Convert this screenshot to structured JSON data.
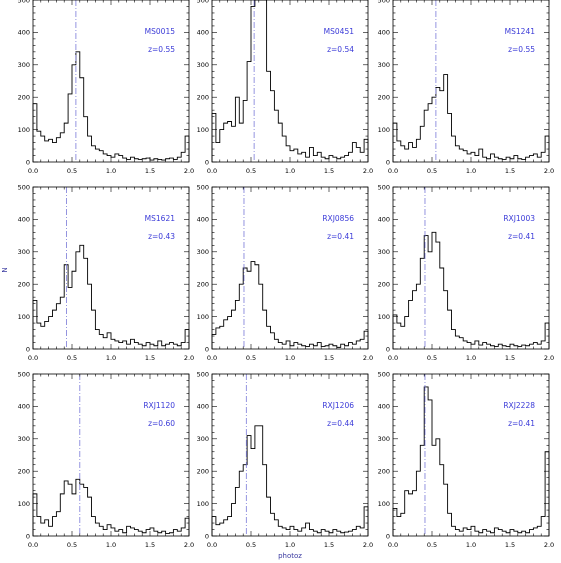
{
  "figure": {
    "xlabel": "photoz",
    "ylabel": "N",
    "colors": {
      "histogram": "#000000",
      "marker": "#7a7ad8",
      "label": "#3a3ad8"
    }
  },
  "chart_data": [
    {
      "type": "histogram",
      "cluster": "MS0015",
      "z_label": "z=0.55",
      "z_marker": 0.55,
      "xlim": [
        0.0,
        2.0
      ],
      "ylim": [
        0,
        500
      ],
      "bin_width": 0.05,
      "x_ticks": [
        "0.0",
        "0.5",
        "1.0",
        "1.5",
        "2.0"
      ],
      "y_ticks": [
        "0",
        "100",
        "200",
        "300",
        "400",
        "500"
      ],
      "values": [
        180,
        95,
        80,
        65,
        70,
        60,
        75,
        90,
        120,
        210,
        300,
        340,
        260,
        140,
        80,
        50,
        40,
        35,
        25,
        20,
        15,
        25,
        20,
        12,
        8,
        15,
        10,
        8,
        10,
        12,
        6,
        10,
        8,
        6,
        10,
        12,
        8,
        15,
        30,
        80
      ]
    },
    {
      "type": "histogram",
      "cluster": "MS0451",
      "z_label": "z=0.54",
      "z_marker": 0.54,
      "xlim": [
        0.0,
        2.0
      ],
      "ylim": [
        0,
        500
      ],
      "bin_width": 0.05,
      "x_ticks": [
        "0.0",
        "0.5",
        "1.0",
        "1.5",
        "2.0"
      ],
      "y_ticks": [
        "0",
        "100",
        "200",
        "300",
        "400",
        "500"
      ],
      "values": [
        150,
        60,
        100,
        120,
        125,
        110,
        200,
        120,
        190,
        310,
        480,
        500,
        500,
        500,
        280,
        220,
        160,
        120,
        80,
        50,
        35,
        40,
        25,
        30,
        15,
        45,
        20,
        30,
        15,
        10,
        20,
        15,
        10,
        15,
        20,
        30,
        60,
        45,
        30,
        70
      ]
    },
    {
      "type": "histogram",
      "cluster": "MS1241",
      "z_label": "z=0.55",
      "z_marker": 0.55,
      "xlim": [
        0.0,
        2.0
      ],
      "ylim": [
        0,
        500
      ],
      "bin_width": 0.05,
      "x_ticks": [
        "0.0",
        "0.5",
        "1.0",
        "1.5",
        "2.0"
      ],
      "y_ticks": [
        "0",
        "100",
        "200",
        "300",
        "400",
        "500"
      ],
      "values": [
        120,
        65,
        50,
        40,
        60,
        45,
        70,
        110,
        160,
        180,
        200,
        230,
        220,
        270,
        150,
        80,
        50,
        40,
        35,
        25,
        30,
        20,
        40,
        15,
        10,
        25,
        15,
        10,
        8,
        15,
        10,
        20,
        10,
        8,
        15,
        20,
        25,
        15,
        30,
        80
      ]
    },
    {
      "type": "histogram",
      "cluster": "MS1621",
      "z_label": "z=0.43",
      "z_marker": 0.43,
      "xlim": [
        0.0,
        2.0
      ],
      "ylim": [
        0,
        500
      ],
      "bin_width": 0.05,
      "x_ticks": [
        "0.0",
        "0.5",
        "1.0",
        "1.5",
        "2.0"
      ],
      "y_ticks": [
        "0",
        "100",
        "200",
        "300",
        "400",
        "500"
      ],
      "values": [
        150,
        80,
        70,
        85,
        100,
        120,
        140,
        160,
        260,
        190,
        240,
        300,
        320,
        280,
        200,
        120,
        60,
        45,
        35,
        50,
        30,
        25,
        20,
        25,
        15,
        30,
        20,
        15,
        10,
        20,
        15,
        10,
        25,
        10,
        15,
        20,
        15,
        10,
        20,
        60
      ]
    },
    {
      "type": "histogram",
      "cluster": "RXJ0856",
      "z_label": "z=0.41",
      "z_marker": 0.41,
      "xlim": [
        0.0,
        2.0
      ],
      "ylim": [
        0,
        500
      ],
      "bin_width": 0.05,
      "x_ticks": [
        "0.0",
        "0.5",
        "1.0",
        "1.5",
        "2.0"
      ],
      "y_ticks": [
        "0",
        "100",
        "200",
        "300",
        "400",
        "500"
      ],
      "values": [
        45,
        65,
        70,
        90,
        100,
        120,
        150,
        200,
        250,
        240,
        270,
        260,
        200,
        120,
        70,
        50,
        30,
        20,
        15,
        25,
        10,
        20,
        15,
        10,
        8,
        15,
        10,
        20,
        8,
        10,
        15,
        10,
        5,
        15,
        10,
        20,
        15,
        25,
        30,
        55
      ]
    },
    {
      "type": "histogram",
      "cluster": "RXJ1003",
      "z_label": "z=0.41",
      "z_marker": 0.41,
      "xlim": [
        0.0,
        2.0
      ],
      "ylim": [
        0,
        500
      ],
      "bin_width": 0.05,
      "x_ticks": [
        "0.0",
        "0.5",
        "1.0",
        "1.5",
        "2.0"
      ],
      "y_ticks": [
        "0",
        "100",
        "200",
        "300",
        "400",
        "500"
      ],
      "values": [
        105,
        80,
        70,
        100,
        150,
        180,
        200,
        280,
        350,
        300,
        360,
        330,
        250,
        180,
        120,
        60,
        40,
        35,
        25,
        20,
        15,
        25,
        12,
        20,
        15,
        10,
        8,
        15,
        10,
        8,
        15,
        10,
        8,
        12,
        10,
        15,
        20,
        15,
        25,
        80
      ]
    },
    {
      "type": "histogram",
      "cluster": "RXJ1120",
      "z_label": "z=0.60",
      "z_marker": 0.6,
      "xlim": [
        0.0,
        2.0
      ],
      "ylim": [
        0,
        500
      ],
      "bin_width": 0.05,
      "x_ticks": [
        "0.0",
        "0.5",
        "1.0",
        "1.5",
        "2.0"
      ],
      "y_ticks": [
        "0",
        "100",
        "200",
        "300",
        "400",
        "500"
      ],
      "values": [
        130,
        60,
        40,
        50,
        30,
        60,
        75,
        130,
        170,
        160,
        130,
        175,
        160,
        150,
        120,
        60,
        40,
        30,
        20,
        35,
        25,
        15,
        20,
        10,
        30,
        25,
        20,
        15,
        10,
        20,
        25,
        15,
        10,
        15,
        8,
        10,
        20,
        15,
        25,
        55
      ]
    },
    {
      "type": "histogram",
      "cluster": "RXJ1206",
      "z_label": "z=0.44",
      "z_marker": 0.44,
      "xlim": [
        0.0,
        2.0
      ],
      "ylim": [
        0,
        500
      ],
      "bin_width": 0.05,
      "x_ticks": [
        "0.0",
        "0.5",
        "1.0",
        "1.5",
        "2.0"
      ],
      "y_ticks": [
        "0",
        "100",
        "200",
        "300",
        "400",
        "500"
      ],
      "values": [
        60,
        35,
        40,
        50,
        60,
        100,
        150,
        200,
        220,
        310,
        270,
        340,
        340,
        220,
        120,
        70,
        50,
        30,
        25,
        20,
        30,
        20,
        15,
        25,
        40,
        20,
        15,
        10,
        20,
        15,
        10,
        20,
        15,
        10,
        12,
        15,
        20,
        30,
        25,
        90
      ]
    },
    {
      "type": "histogram",
      "cluster": "RXJ2228",
      "z_label": "z=0.41",
      "z_marker": 0.41,
      "xlim": [
        0.0,
        2.0
      ],
      "ylim": [
        0,
        500
      ],
      "bin_width": 0.05,
      "x_ticks": [
        "0.0",
        "0.5",
        "1.0",
        "1.5",
        "2.0"
      ],
      "y_ticks": [
        "0",
        "100",
        "200",
        "300",
        "400",
        "500"
      ],
      "values": [
        85,
        60,
        70,
        140,
        130,
        140,
        200,
        280,
        460,
        420,
        280,
        300,
        220,
        160,
        70,
        30,
        20,
        15,
        25,
        20,
        30,
        15,
        10,
        20,
        15,
        10,
        25,
        20,
        15,
        10,
        20,
        15,
        10,
        15,
        10,
        20,
        25,
        30,
        60,
        260
      ]
    }
  ]
}
